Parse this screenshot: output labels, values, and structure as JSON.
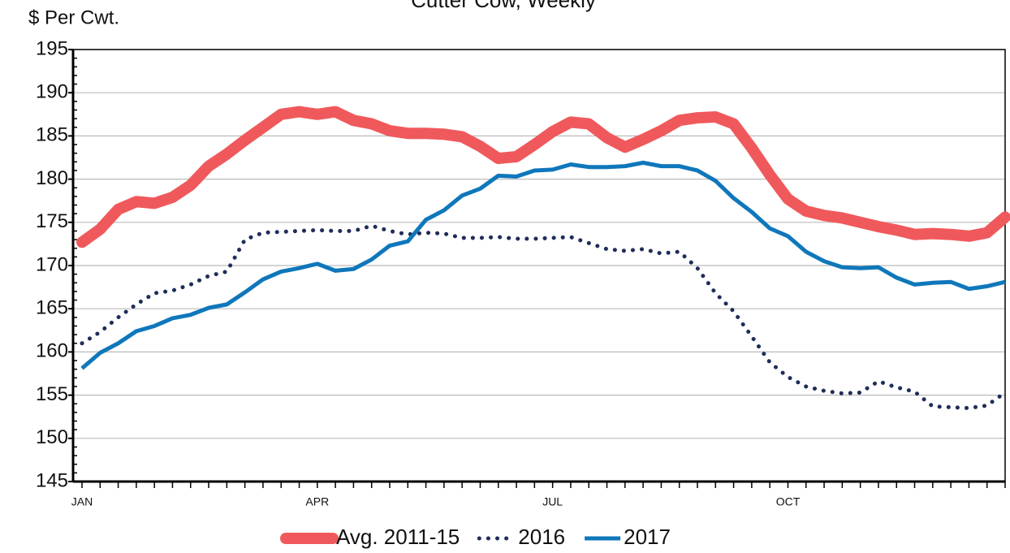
{
  "chart_data": {
    "type": "line",
    "title": "Cutter Cow, Weekly",
    "y_label": "$ Per Cwt.",
    "categories": [
      "JAN",
      null,
      null,
      null,
      null,
      null,
      null,
      null,
      null,
      null,
      null,
      null,
      null,
      "APR",
      null,
      null,
      null,
      null,
      null,
      null,
      null,
      null,
      null,
      null,
      null,
      null,
      "JUL",
      null,
      null,
      null,
      null,
      null,
      null,
      null,
      null,
      null,
      null,
      null,
      null,
      "OCT",
      null,
      null,
      null,
      null,
      null,
      null,
      null,
      null,
      null,
      null,
      null,
      null
    ],
    "series": [
      {
        "name": "Avg. 2011-15",
        "color": "#f0595c",
        "style": "thick",
        "values": [
          172.7,
          174.2,
          176.5,
          177.4,
          177.2,
          177.9,
          179.3,
          181.5,
          182.9,
          184.5,
          186.0,
          187.5,
          187.8,
          187.5,
          187.8,
          186.8,
          186.4,
          185.6,
          185.3,
          185.3,
          185.2,
          184.9,
          183.8,
          182.4,
          182.6,
          184.0,
          185.5,
          186.6,
          186.4,
          184.8,
          183.7,
          184.6,
          185.6,
          186.8,
          187.1,
          187.2,
          186.4,
          183.6,
          180.5,
          177.7,
          176.3,
          175.8,
          175.5,
          175.0,
          174.5,
          174.1,
          173.6,
          173.7,
          173.6,
          173.4,
          173.8,
          175.6
        ]
      },
      {
        "name": "2016",
        "color": "#1f2d5a",
        "style": "dotted",
        "values": [
          161.0,
          162.3,
          164.0,
          165.5,
          166.8,
          167.1,
          167.8,
          168.8,
          169.3,
          173.0,
          173.8,
          173.9,
          174.0,
          174.1,
          174.0,
          174.0,
          174.6,
          174.0,
          173.6,
          173.8,
          173.7,
          173.2,
          173.2,
          173.3,
          173.1,
          173.1,
          173.2,
          173.3,
          172.6,
          171.9,
          171.7,
          171.9,
          171.4,
          171.6,
          169.7,
          166.8,
          164.7,
          161.8,
          158.8,
          157.1,
          156.0,
          155.5,
          155.2,
          155.3,
          156.6,
          155.9,
          155.4,
          153.7,
          153.6,
          153.5,
          153.8,
          155.3
        ]
      },
      {
        "name": "2017",
        "color": "#0f77bb",
        "style": "solid",
        "values": [
          158.1,
          159.9,
          161.0,
          162.4,
          163.0,
          163.9,
          164.3,
          165.1,
          165.5,
          166.9,
          168.4,
          169.3,
          169.7,
          170.2,
          169.4,
          169.6,
          170.7,
          172.3,
          172.8,
          175.3,
          176.4,
          178.1,
          178.9,
          180.4,
          180.3,
          181.0,
          181.1,
          181.7,
          181.4,
          181.4,
          181.5,
          181.9,
          181.5,
          181.5,
          181.0,
          179.8,
          177.8,
          176.2,
          174.3,
          173.4,
          171.6,
          170.5,
          169.8,
          169.7,
          169.8,
          168.6,
          167.8,
          168.0,
          168.1,
          167.3,
          167.6,
          168.1
        ]
      }
    ],
    "ylim": [
      145,
      195
    ],
    "yticks": [
      145,
      150,
      155,
      160,
      165,
      170,
      175,
      180,
      185,
      190,
      195
    ],
    "grid": true,
    "legend": "bottom"
  }
}
